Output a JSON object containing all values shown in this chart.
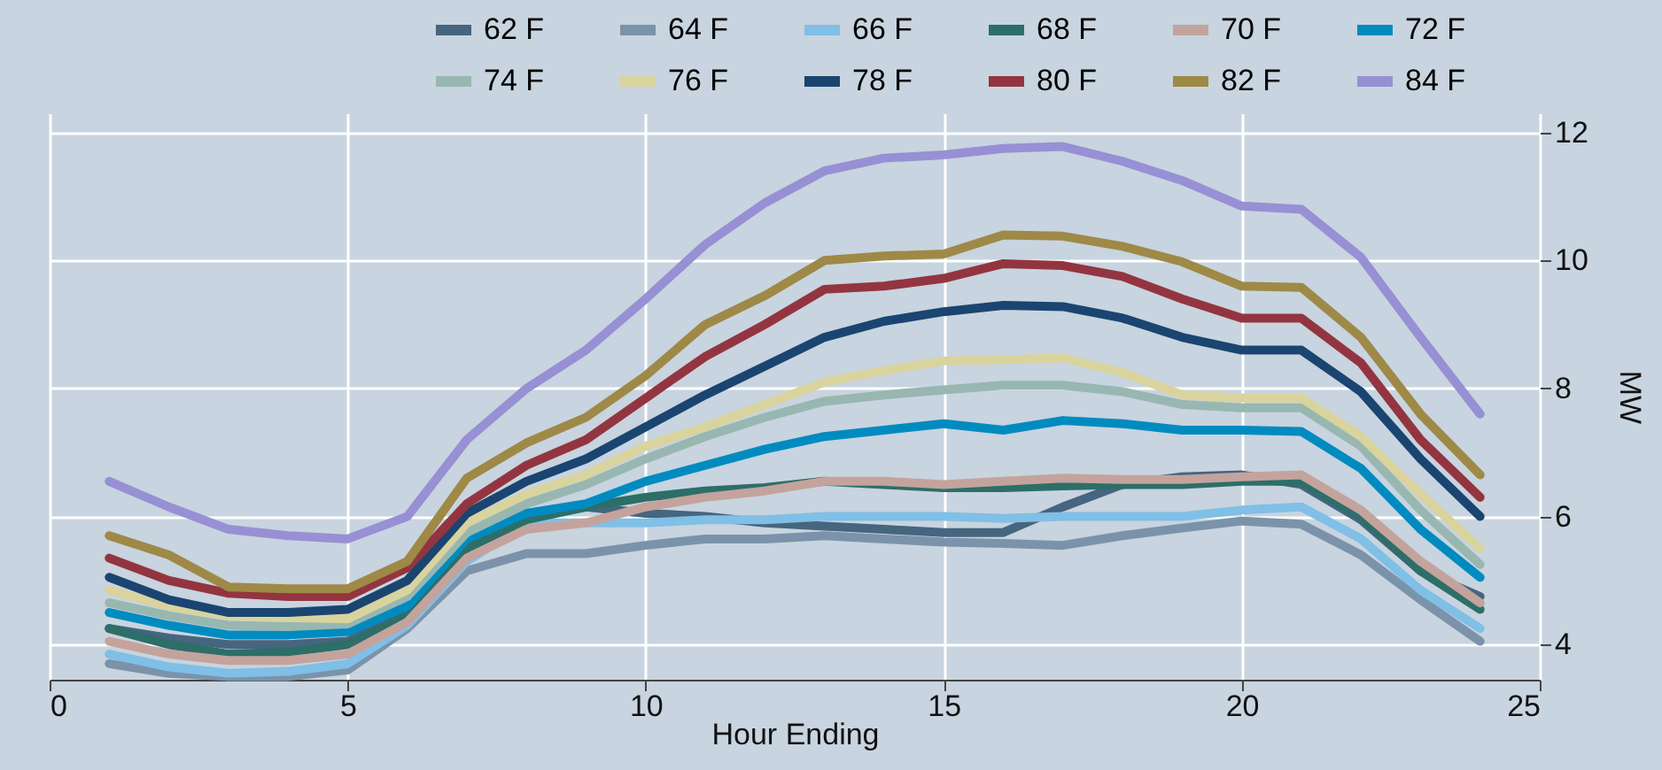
{
  "chart_data": {
    "type": "line",
    "xlabel": "Hour Ending",
    "ylabel": "MW",
    "x": [
      1,
      2,
      3,
      4,
      5,
      6,
      7,
      8,
      9,
      10,
      11,
      12,
      13,
      14,
      15,
      16,
      17,
      18,
      19,
      20,
      21,
      22,
      23,
      24
    ],
    "xlim": [
      0,
      25
    ],
    "xticks": [
      0,
      5,
      10,
      15,
      20,
      25
    ],
    "ylim": [
      3.45,
      12.3
    ],
    "yticks": [
      4,
      6,
      8,
      10,
      12
    ],
    "grid": true,
    "legend": "top",
    "line_style": "solid",
    "marker": "none",
    "series": [
      {
        "name": "62 F",
        "color": "#46657f",
        "values": [
          4.25,
          4.1,
          4.0,
          4.0,
          4.05,
          4.5,
          5.6,
          6.05,
          6.15,
          6.05,
          6.0,
          5.9,
          5.85,
          5.8,
          5.75,
          5.75,
          6.15,
          6.5,
          6.62,
          6.65,
          6.5,
          5.95,
          5.15,
          4.75
        ]
      },
      {
        "name": "64 F",
        "color": "#7b93aa",
        "values": [
          3.7,
          3.55,
          3.5,
          3.5,
          3.6,
          4.25,
          5.15,
          5.42,
          5.42,
          5.55,
          5.65,
          5.65,
          5.7,
          5.65,
          5.6,
          5.58,
          5.55,
          5.7,
          5.82,
          5.93,
          5.88,
          5.4,
          4.7,
          4.05
        ]
      },
      {
        "name": "66 F",
        "color": "#80bfe6",
        "values": [
          3.85,
          3.65,
          3.55,
          3.58,
          3.7,
          4.3,
          5.3,
          5.9,
          5.9,
          5.9,
          5.95,
          5.95,
          6.0,
          6.0,
          6.0,
          5.97,
          6.0,
          6.0,
          6.0,
          6.1,
          6.15,
          5.65,
          4.85,
          4.25
        ]
      },
      {
        "name": "68 F",
        "color": "#2d6e68",
        "values": [
          4.25,
          4.0,
          3.85,
          3.88,
          4.0,
          4.45,
          5.5,
          5.95,
          6.15,
          6.3,
          6.4,
          6.45,
          6.55,
          6.5,
          6.45,
          6.45,
          6.48,
          6.5,
          6.5,
          6.55,
          6.55,
          6.0,
          5.15,
          4.55
        ]
      },
      {
        "name": "70 F",
        "color": "#c4a39d",
        "values": [
          4.05,
          3.85,
          3.75,
          3.75,
          3.85,
          4.35,
          5.35,
          5.8,
          5.9,
          6.15,
          6.3,
          6.4,
          6.55,
          6.55,
          6.5,
          6.55,
          6.6,
          6.58,
          6.58,
          6.62,
          6.65,
          6.1,
          5.3,
          4.65
        ]
      },
      {
        "name": "72 F",
        "color": "#008bc0",
        "values": [
          4.5,
          4.3,
          4.15,
          4.15,
          4.2,
          4.6,
          5.65,
          6.05,
          6.2,
          6.55,
          6.8,
          7.05,
          7.25,
          7.35,
          7.45,
          7.35,
          7.5,
          7.45,
          7.35,
          7.35,
          7.33,
          6.75,
          5.8,
          5.05
        ]
      },
      {
        "name": "74 F",
        "color": "#98b7b0",
        "values": [
          4.65,
          4.45,
          4.3,
          4.28,
          4.32,
          4.75,
          5.75,
          6.2,
          6.5,
          6.9,
          7.25,
          7.55,
          7.8,
          7.9,
          7.98,
          8.05,
          8.05,
          7.95,
          7.75,
          7.7,
          7.7,
          7.1,
          6.1,
          5.25
        ]
      },
      {
        "name": "76 F",
        "color": "#d9d39d",
        "values": [
          4.85,
          4.6,
          4.45,
          4.42,
          4.4,
          4.85,
          5.9,
          6.35,
          6.65,
          7.1,
          7.4,
          7.75,
          8.1,
          8.28,
          8.43,
          8.45,
          8.48,
          8.25,
          7.9,
          7.85,
          7.85,
          7.25,
          6.35,
          5.5
        ]
      },
      {
        "name": "78 F",
        "color": "#1a4571",
        "values": [
          5.05,
          4.7,
          4.5,
          4.5,
          4.55,
          5.0,
          6.05,
          6.55,
          6.9,
          7.4,
          7.9,
          8.35,
          8.8,
          9.05,
          9.2,
          9.3,
          9.28,
          9.1,
          8.8,
          8.6,
          8.6,
          7.95,
          6.9,
          6.0
        ]
      },
      {
        "name": "80 F",
        "color": "#933540",
        "values": [
          5.35,
          5.0,
          4.8,
          4.75,
          4.75,
          5.2,
          6.2,
          6.8,
          7.2,
          7.85,
          8.5,
          9.0,
          9.55,
          9.6,
          9.72,
          9.95,
          9.92,
          9.75,
          9.4,
          9.1,
          9.1,
          8.4,
          7.2,
          6.3
        ]
      },
      {
        "name": "82 F",
        "color": "#9e8947",
        "values": [
          5.7,
          5.4,
          4.9,
          4.87,
          4.87,
          5.3,
          6.6,
          7.15,
          7.55,
          8.2,
          9.0,
          9.45,
          10.0,
          10.07,
          10.1,
          10.4,
          10.38,
          10.22,
          9.98,
          9.6,
          9.58,
          8.8,
          7.6,
          6.65
        ]
      },
      {
        "name": "84 F",
        "color": "#9790d4",
        "values": [
          6.55,
          6.15,
          5.8,
          5.7,
          5.65,
          6.0,
          7.2,
          8.0,
          8.6,
          9.4,
          10.25,
          10.9,
          11.4,
          11.6,
          11.65,
          11.75,
          11.78,
          11.55,
          11.25,
          10.85,
          10.8,
          10.05,
          8.8,
          7.6
        ]
      }
    ]
  }
}
